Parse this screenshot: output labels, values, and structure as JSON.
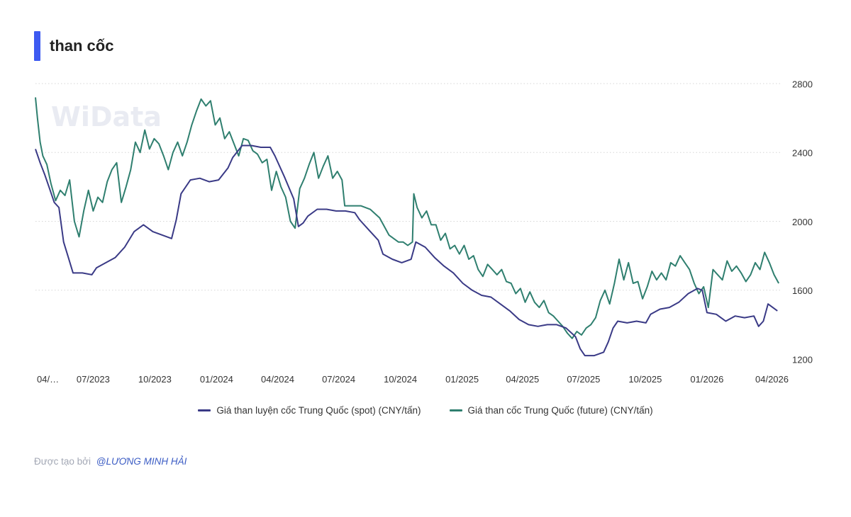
{
  "title": "than cốc",
  "footer": {
    "prefix": "Được tạo bởi",
    "author": "@LƯƠNG MINH HẢI"
  },
  "watermark": {
    "brand": "WiData"
  },
  "colors": {
    "accent": "#3d5af1",
    "spot": "#3a3a86",
    "future": "#2f7f6f",
    "grid": "#d6d6d6"
  },
  "chart_data": {
    "type": "line",
    "title": "than cốc",
    "x_type": "date",
    "x_range": [
      "2023-04-06",
      "2026-04-20"
    ],
    "ylim": [
      1200,
      2800
    ],
    "y_ticks": [
      1200,
      1600,
      2000,
      2400,
      2800
    ],
    "y_axis_position": "right",
    "grid": "horizontal dotted",
    "legend_position": "bottom",
    "x_ticks": [
      {
        "date": "2023-04-06",
        "label": "04/…"
      },
      {
        "date": "2023-07-01",
        "label": "07/2023"
      },
      {
        "date": "2023-10-01",
        "label": "10/2023"
      },
      {
        "date": "2024-01-01",
        "label": "01/2024"
      },
      {
        "date": "2024-04-01",
        "label": "04/2024"
      },
      {
        "date": "2024-07-01",
        "label": "07/2024"
      },
      {
        "date": "2024-10-01",
        "label": "10/2024"
      },
      {
        "date": "2025-01-01",
        "label": "01/2025"
      },
      {
        "date": "2025-04-01",
        "label": "04/2025"
      },
      {
        "date": "2025-07-01",
        "label": "07/2025"
      },
      {
        "date": "2025-10-01",
        "label": "10/2025"
      },
      {
        "date": "2026-01-01",
        "label": "01/2026"
      },
      {
        "date": "2026-04-01",
        "label": "04/2026"
      }
    ],
    "series": [
      {
        "name": "Giá than luyện cốc Trung Quốc (spot) (CNY/tấn)",
        "color": "#3a3a86",
        "points": [
          [
            "2023-04-06",
            2420
          ],
          [
            "2023-04-13",
            2340
          ],
          [
            "2023-04-20",
            2270
          ],
          [
            "2023-04-27",
            2190
          ],
          [
            "2023-05-04",
            2110
          ],
          [
            "2023-05-11",
            2080
          ],
          [
            "2023-05-18",
            1880
          ],
          [
            "2023-05-25",
            1790
          ],
          [
            "2023-06-01",
            1700
          ],
          [
            "2023-06-15",
            1700
          ],
          [
            "2023-06-29",
            1690
          ],
          [
            "2023-07-06",
            1730
          ],
          [
            "2023-07-20",
            1760
          ],
          [
            "2023-08-03",
            1790
          ],
          [
            "2023-08-17",
            1850
          ],
          [
            "2023-08-31",
            1940
          ],
          [
            "2023-09-14",
            1980
          ],
          [
            "2023-09-28",
            1940
          ],
          [
            "2023-10-12",
            1920
          ],
          [
            "2023-10-26",
            1900
          ],
          [
            "2023-11-02",
            2010
          ],
          [
            "2023-11-09",
            2160
          ],
          [
            "2023-11-23",
            2240
          ],
          [
            "2023-12-07",
            2250
          ],
          [
            "2023-12-21",
            2230
          ],
          [
            "2024-01-04",
            2240
          ],
          [
            "2024-01-18",
            2310
          ],
          [
            "2024-01-25",
            2370
          ],
          [
            "2024-02-08",
            2440
          ],
          [
            "2024-02-22",
            2440
          ],
          [
            "2024-03-07",
            2430
          ],
          [
            "2024-03-21",
            2430
          ],
          [
            "2024-03-28",
            2380
          ],
          [
            "2024-04-11",
            2260
          ],
          [
            "2024-04-25",
            2130
          ],
          [
            "2024-05-02",
            1970
          ],
          [
            "2024-05-09",
            1990
          ],
          [
            "2024-05-16",
            2030
          ],
          [
            "2024-05-30",
            2070
          ],
          [
            "2024-06-13",
            2070
          ],
          [
            "2024-06-27",
            2060
          ],
          [
            "2024-07-11",
            2060
          ],
          [
            "2024-07-25",
            2050
          ],
          [
            "2024-08-01",
            2010
          ],
          [
            "2024-08-15",
            1950
          ],
          [
            "2024-08-29",
            1890
          ],
          [
            "2024-09-05",
            1810
          ],
          [
            "2024-09-19",
            1780
          ],
          [
            "2024-10-03",
            1760
          ],
          [
            "2024-10-17",
            1780
          ],
          [
            "2024-10-24",
            1880
          ],
          [
            "2024-11-07",
            1850
          ],
          [
            "2024-11-21",
            1790
          ],
          [
            "2024-12-05",
            1740
          ],
          [
            "2024-12-19",
            1700
          ],
          [
            "2025-01-02",
            1640
          ],
          [
            "2025-01-16",
            1600
          ],
          [
            "2025-01-30",
            1570
          ],
          [
            "2025-02-13",
            1560
          ],
          [
            "2025-02-27",
            1520
          ],
          [
            "2025-03-13",
            1480
          ],
          [
            "2025-03-27",
            1430
          ],
          [
            "2025-04-10",
            1400
          ],
          [
            "2025-04-24",
            1390
          ],
          [
            "2025-05-08",
            1400
          ],
          [
            "2025-05-22",
            1400
          ],
          [
            "2025-06-05",
            1380
          ],
          [
            "2025-06-19",
            1330
          ],
          [
            "2025-06-26",
            1260
          ],
          [
            "2025-07-03",
            1220
          ],
          [
            "2025-07-17",
            1220
          ],
          [
            "2025-07-31",
            1240
          ],
          [
            "2025-08-07",
            1300
          ],
          [
            "2025-08-14",
            1380
          ],
          [
            "2025-08-21",
            1420
          ],
          [
            "2025-09-04",
            1410
          ],
          [
            "2025-09-18",
            1420
          ],
          [
            "2025-10-02",
            1410
          ],
          [
            "2025-10-09",
            1460
          ],
          [
            "2025-10-23",
            1490
          ],
          [
            "2025-11-06",
            1500
          ],
          [
            "2025-11-20",
            1530
          ],
          [
            "2025-12-04",
            1580
          ],
          [
            "2025-12-18",
            1610
          ],
          [
            "2025-12-25",
            1600
          ],
          [
            "2026-01-01",
            1470
          ],
          [
            "2026-01-15",
            1460
          ],
          [
            "2026-01-29",
            1420
          ],
          [
            "2026-02-12",
            1450
          ],
          [
            "2026-02-26",
            1440
          ],
          [
            "2026-03-12",
            1450
          ],
          [
            "2026-03-19",
            1390
          ],
          [
            "2026-03-26",
            1420
          ],
          [
            "2026-04-02",
            1520
          ],
          [
            "2026-04-09",
            1500
          ],
          [
            "2026-04-16",
            1480
          ]
        ]
      },
      {
        "name": "Giá than cốc Trung Quốc (future) (CNY/tấn)",
        "color": "#2f7f6f",
        "points": [
          [
            "2023-04-06",
            2720
          ],
          [
            "2023-04-09",
            2600
          ],
          [
            "2023-04-13",
            2460
          ],
          [
            "2023-04-17",
            2380
          ],
          [
            "2023-04-23",
            2330
          ],
          [
            "2023-04-29",
            2220
          ],
          [
            "2023-05-06",
            2120
          ],
          [
            "2023-05-13",
            2180
          ],
          [
            "2023-05-20",
            2150
          ],
          [
            "2023-05-27",
            2240
          ],
          [
            "2023-06-03",
            2000
          ],
          [
            "2023-06-10",
            1910
          ],
          [
            "2023-06-17",
            2060
          ],
          [
            "2023-06-24",
            2180
          ],
          [
            "2023-07-01",
            2060
          ],
          [
            "2023-07-08",
            2140
          ],
          [
            "2023-07-15",
            2110
          ],
          [
            "2023-07-22",
            2230
          ],
          [
            "2023-07-29",
            2300
          ],
          [
            "2023-08-05",
            2340
          ],
          [
            "2023-08-12",
            2110
          ],
          [
            "2023-08-19",
            2200
          ],
          [
            "2023-08-26",
            2300
          ],
          [
            "2023-09-02",
            2460
          ],
          [
            "2023-09-09",
            2400
          ],
          [
            "2023-09-16",
            2530
          ],
          [
            "2023-09-23",
            2420
          ],
          [
            "2023-09-30",
            2480
          ],
          [
            "2023-10-07",
            2450
          ],
          [
            "2023-10-14",
            2380
          ],
          [
            "2023-10-21",
            2300
          ],
          [
            "2023-10-28",
            2400
          ],
          [
            "2023-11-04",
            2460
          ],
          [
            "2023-11-11",
            2380
          ],
          [
            "2023-11-18",
            2460
          ],
          [
            "2023-11-25",
            2560
          ],
          [
            "2023-12-02",
            2640
          ],
          [
            "2023-12-09",
            2710
          ],
          [
            "2023-12-16",
            2670
          ],
          [
            "2023-12-23",
            2700
          ],
          [
            "2023-12-30",
            2560
          ],
          [
            "2024-01-06",
            2600
          ],
          [
            "2024-01-13",
            2480
          ],
          [
            "2024-01-20",
            2520
          ],
          [
            "2024-01-27",
            2450
          ],
          [
            "2024-02-03",
            2380
          ],
          [
            "2024-02-10",
            2480
          ],
          [
            "2024-02-17",
            2470
          ],
          [
            "2024-02-24",
            2410
          ],
          [
            "2024-03-02",
            2390
          ],
          [
            "2024-03-09",
            2340
          ],
          [
            "2024-03-16",
            2360
          ],
          [
            "2024-03-23",
            2180
          ],
          [
            "2024-03-30",
            2290
          ],
          [
            "2024-04-06",
            2200
          ],
          [
            "2024-04-13",
            2140
          ],
          [
            "2024-04-20",
            2000
          ],
          [
            "2024-04-27",
            1960
          ],
          [
            "2024-05-04",
            2190
          ],
          [
            "2024-05-11",
            2250
          ],
          [
            "2024-05-18",
            2330
          ],
          [
            "2024-05-25",
            2400
          ],
          [
            "2024-06-01",
            2250
          ],
          [
            "2024-06-08",
            2320
          ],
          [
            "2024-06-15",
            2380
          ],
          [
            "2024-06-22",
            2250
          ],
          [
            "2024-06-29",
            2290
          ],
          [
            "2024-07-06",
            2240
          ],
          [
            "2024-07-10",
            2090
          ],
          [
            "2024-07-20",
            2090
          ],
          [
            "2024-08-03",
            2090
          ],
          [
            "2024-08-17",
            2070
          ],
          [
            "2024-08-31",
            2020
          ],
          [
            "2024-09-14",
            1920
          ],
          [
            "2024-09-28",
            1880
          ],
          [
            "2024-10-05",
            1880
          ],
          [
            "2024-10-12",
            1860
          ],
          [
            "2024-10-19",
            1880
          ],
          [
            "2024-10-21",
            2160
          ],
          [
            "2024-10-26",
            2080
          ],
          [
            "2024-11-02",
            2020
          ],
          [
            "2024-11-09",
            2060
          ],
          [
            "2024-11-16",
            1980
          ],
          [
            "2024-11-23",
            1980
          ],
          [
            "2024-11-30",
            1890
          ],
          [
            "2024-12-07",
            1930
          ],
          [
            "2024-12-14",
            1840
          ],
          [
            "2024-12-21",
            1860
          ],
          [
            "2024-12-28",
            1810
          ],
          [
            "2025-01-04",
            1860
          ],
          [
            "2025-01-11",
            1780
          ],
          [
            "2025-01-18",
            1800
          ],
          [
            "2025-01-25",
            1720
          ],
          [
            "2025-02-01",
            1680
          ],
          [
            "2025-02-08",
            1750
          ],
          [
            "2025-02-15",
            1720
          ],
          [
            "2025-02-22",
            1690
          ],
          [
            "2025-03-01",
            1720
          ],
          [
            "2025-03-08",
            1650
          ],
          [
            "2025-03-15",
            1640
          ],
          [
            "2025-03-22",
            1580
          ],
          [
            "2025-03-29",
            1610
          ],
          [
            "2025-04-05",
            1530
          ],
          [
            "2025-04-12",
            1590
          ],
          [
            "2025-04-19",
            1530
          ],
          [
            "2025-04-26",
            1500
          ],
          [
            "2025-05-03",
            1540
          ],
          [
            "2025-05-10",
            1470
          ],
          [
            "2025-05-17",
            1450
          ],
          [
            "2025-05-24",
            1420
          ],
          [
            "2025-05-31",
            1390
          ],
          [
            "2025-06-07",
            1350
          ],
          [
            "2025-06-14",
            1320
          ],
          [
            "2025-06-21",
            1360
          ],
          [
            "2025-06-28",
            1340
          ],
          [
            "2025-07-05",
            1380
          ],
          [
            "2025-07-12",
            1400
          ],
          [
            "2025-07-19",
            1440
          ],
          [
            "2025-07-26",
            1540
          ],
          [
            "2025-08-02",
            1600
          ],
          [
            "2025-08-09",
            1520
          ],
          [
            "2025-08-16",
            1640
          ],
          [
            "2025-08-23",
            1780
          ],
          [
            "2025-08-30",
            1660
          ],
          [
            "2025-09-06",
            1760
          ],
          [
            "2025-09-13",
            1640
          ],
          [
            "2025-09-20",
            1650
          ],
          [
            "2025-09-27",
            1550
          ],
          [
            "2025-10-04",
            1620
          ],
          [
            "2025-10-11",
            1710
          ],
          [
            "2025-10-18",
            1660
          ],
          [
            "2025-10-25",
            1700
          ],
          [
            "2025-11-01",
            1660
          ],
          [
            "2025-11-08",
            1760
          ],
          [
            "2025-11-15",
            1740
          ],
          [
            "2025-11-22",
            1800
          ],
          [
            "2025-11-29",
            1760
          ],
          [
            "2025-12-06",
            1720
          ],
          [
            "2025-12-13",
            1640
          ],
          [
            "2025-12-20",
            1580
          ],
          [
            "2025-12-27",
            1620
          ],
          [
            "2026-01-03",
            1500
          ],
          [
            "2026-01-10",
            1720
          ],
          [
            "2026-01-17",
            1690
          ],
          [
            "2026-01-24",
            1660
          ],
          [
            "2026-01-31",
            1770
          ],
          [
            "2026-02-07",
            1710
          ],
          [
            "2026-02-14",
            1740
          ],
          [
            "2026-02-21",
            1700
          ],
          [
            "2026-02-28",
            1650
          ],
          [
            "2026-03-07",
            1690
          ],
          [
            "2026-03-14",
            1760
          ],
          [
            "2026-03-21",
            1720
          ],
          [
            "2026-03-28",
            1820
          ],
          [
            "2026-04-04",
            1760
          ],
          [
            "2026-04-11",
            1690
          ],
          [
            "2026-04-18",
            1640
          ]
        ]
      }
    ]
  }
}
